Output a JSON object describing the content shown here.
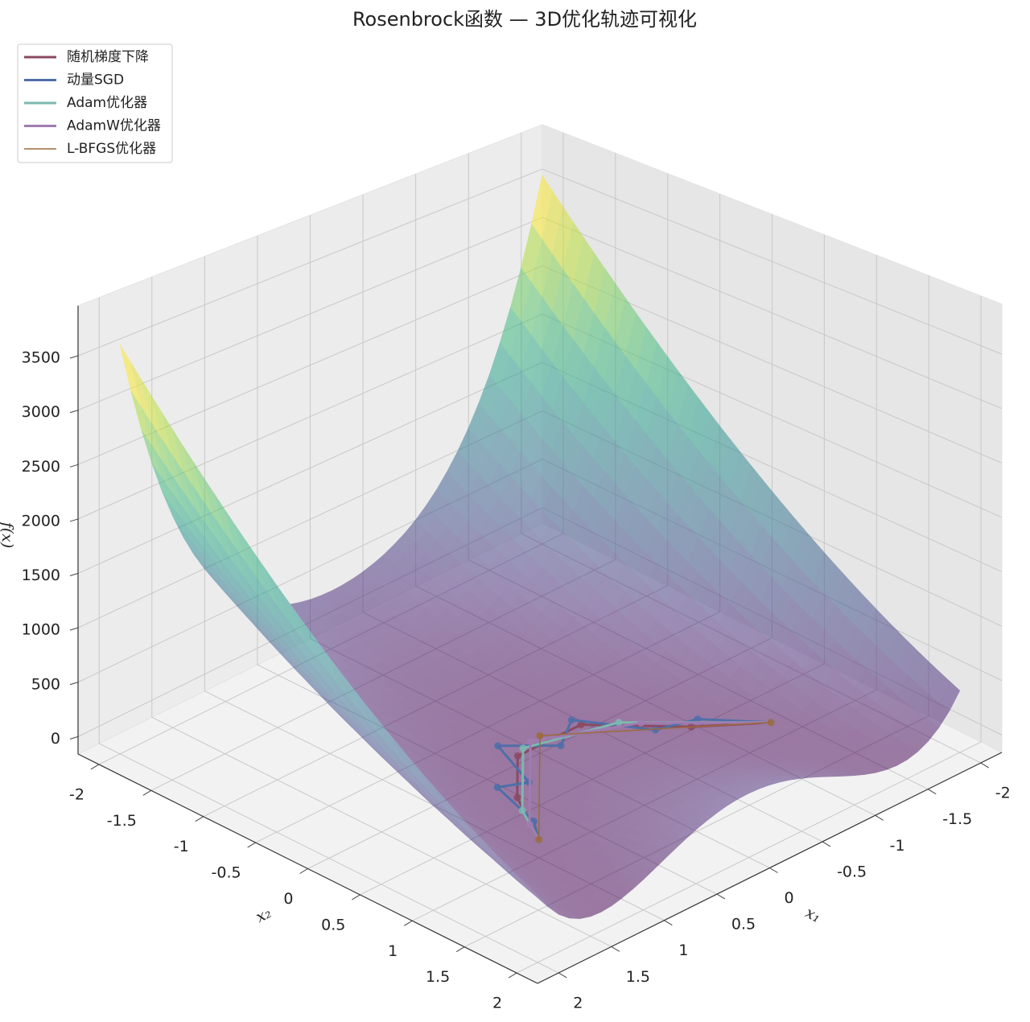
{
  "chart_data": {
    "type": "surface3d",
    "title": "Rosenbrock函数 — 3D优化轨迹可视化",
    "xlabel": "x₁",
    "ylabel": "x₂",
    "zlabel": "f(x)",
    "xlim": [
      -2.2,
      2.2
    ],
    "ylim": [
      -2.2,
      2.2
    ],
    "zlim": [
      -160,
      3960
    ],
    "xticks": [
      -2.0,
      -1.5,
      -1.0,
      -0.5,
      0.0,
      0.5,
      1.0,
      1.5,
      2.0
    ],
    "yticks": [
      -2.0,
      -1.5,
      -1.0,
      -0.5,
      0.0,
      0.5,
      1.0,
      1.5,
      2.0
    ],
    "zticks": [
      0,
      500,
      1000,
      1500,
      2000,
      2500,
      3000,
      3500
    ],
    "colormap": "viridis",
    "grid": true,
    "legend": "upper left",
    "series": [
      {
        "name": "随机梯度下降",
        "color": "#8b4a62",
        "linewidth": 3,
        "x1": [
          -1.2,
          -0.8,
          -0.3,
          0.3,
          0.7,
          1.0
        ],
        "x2": [
          1.0,
          0.64,
          0.09,
          0.09,
          0.49,
          1.0
        ],
        "values": [
          24.2,
          3.24,
          1.69,
          0.49,
          0.09,
          0
        ]
      },
      {
        "name": "动量SGD",
        "color": "#4f6fa8",
        "linewidth": 3,
        "x1": [
          -1.2,
          -0.9,
          -0.6,
          -0.3,
          0.0,
          0.3,
          0.5,
          0.7,
          0.85,
          1.0
        ],
        "x2": [
          1.0,
          0.6,
          0.5,
          0.0,
          0.2,
          -0.1,
          0.4,
          0.3,
          0.8,
          1.0
        ],
        "values": [
          24.2,
          8.02,
          4.52,
          2.5,
          5,
          4.1,
          2.5,
          3.7,
          0.62,
          0
        ]
      },
      {
        "name": "Adam优化器",
        "color": "#7db8b0",
        "linewidth": 3,
        "x1": [
          -1.2,
          -0.5,
          0.2,
          0.8,
          1.0
        ],
        "x2": [
          1.0,
          0.25,
          0.04,
          0.64,
          1.0
        ],
        "values": [
          24.2,
          2.25,
          0.64,
          0.04,
          0
        ]
      },
      {
        "name": "AdamW优化器",
        "color": "#a07cb0",
        "linewidth": 3,
        "x1": [
          -1.2,
          -0.6,
          0.1,
          0.9,
          1.0
        ],
        "x2": [
          1.0,
          0.36,
          0.01,
          0.81,
          1.0
        ],
        "values": [
          24.2,
          2.56,
          0.81,
          0.01,
          0
        ]
      },
      {
        "name": "L-BFGS优化器",
        "color": "#9c6a3c",
        "linewidth": 1.5,
        "x1": [
          -1.2,
          0.0,
          1.0
        ],
        "x2": [
          1.0,
          0.0,
          1.0
        ],
        "values": [
          24.2,
          1,
          0
        ]
      }
    ]
  }
}
